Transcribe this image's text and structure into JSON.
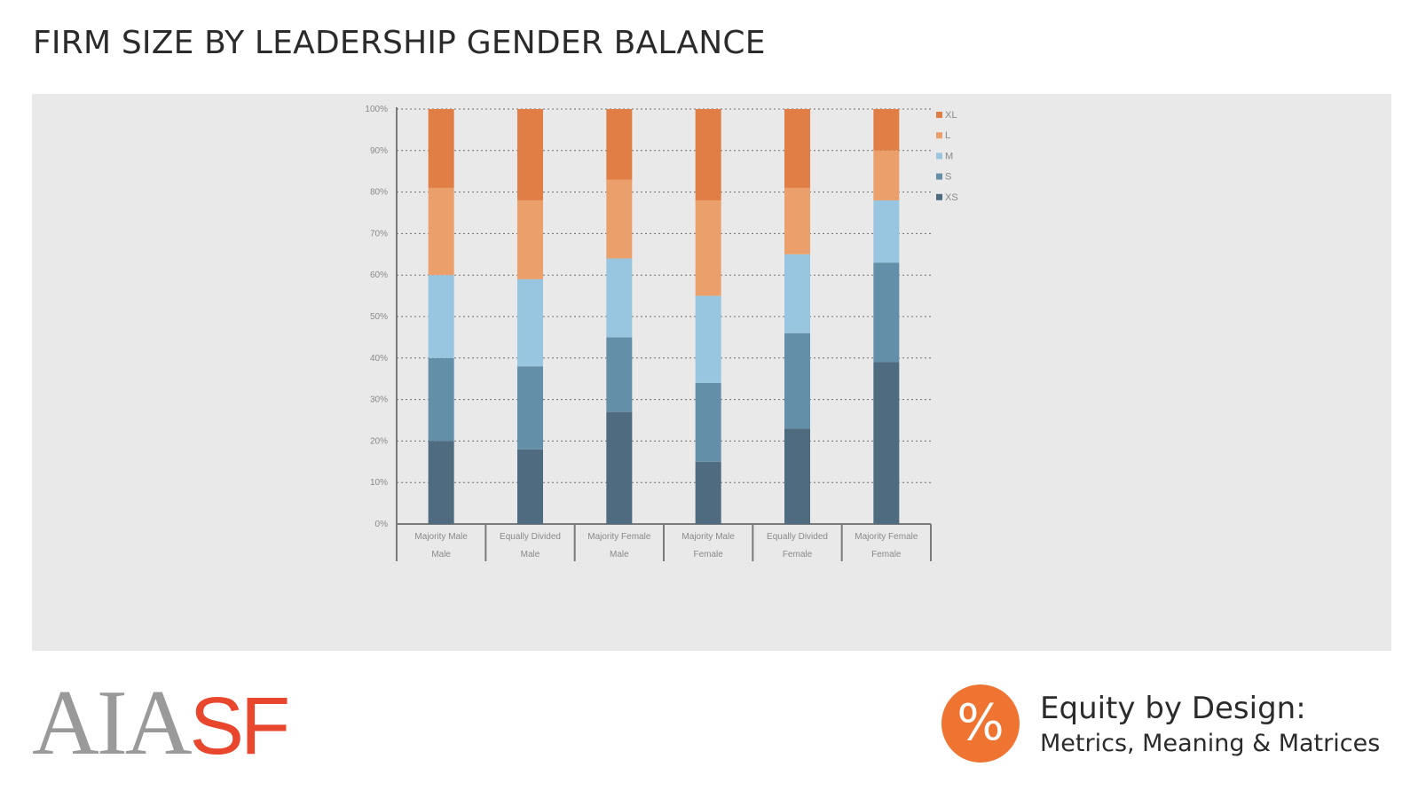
{
  "slide": {
    "title": "FIRM SIZE BY LEADERSHIP GENDER BALANCE"
  },
  "footer": {
    "logo_left": "AIA",
    "logo_right": "SF",
    "badge_symbol": "%",
    "brand_line1": "Equity by Design:",
    "brand_line2": "Metrics, Meaning & Matrices"
  },
  "colors": {
    "XL": "#e07e45",
    "L": "#eba06c",
    "M": "#98c5e0",
    "S": "#648fa8",
    "XS": "#4e6b80",
    "panel_bg": "#e9e9e9",
    "logo_red": "#e8472e",
    "badge_orange": "#ef7431"
  },
  "chart_data": {
    "type": "bar",
    "stacked": true,
    "title": "",
    "xlabel": "",
    "ylabel": "",
    "ylim": [
      0,
      100
    ],
    "y_ticks": [
      "0%",
      "10%",
      "20%",
      "30%",
      "40%",
      "50%",
      "60%",
      "70%",
      "80%",
      "90%",
      "100%"
    ],
    "grid": true,
    "legend_position": "right",
    "categories": [
      [
        "Majority Male",
        "Male"
      ],
      [
        "Equally Divided",
        "Male"
      ],
      [
        "Majority Female",
        "Male"
      ],
      [
        "Majority Male",
        "Female"
      ],
      [
        "Equally Divided",
        "Female"
      ],
      [
        "Majority Female",
        "Female"
      ]
    ],
    "series": [
      {
        "name": "XS",
        "values": [
          20,
          18,
          27,
          15,
          23,
          39
        ]
      },
      {
        "name": "S",
        "values": [
          20,
          20,
          18,
          19,
          23,
          24
        ]
      },
      {
        "name": "M",
        "values": [
          20,
          21,
          19,
          21,
          19,
          15
        ]
      },
      {
        "name": "L",
        "values": [
          21,
          19,
          19,
          23,
          16,
          12
        ]
      },
      {
        "name": "XL",
        "values": [
          19,
          22,
          17,
          22,
          19,
          10
        ]
      }
    ]
  }
}
